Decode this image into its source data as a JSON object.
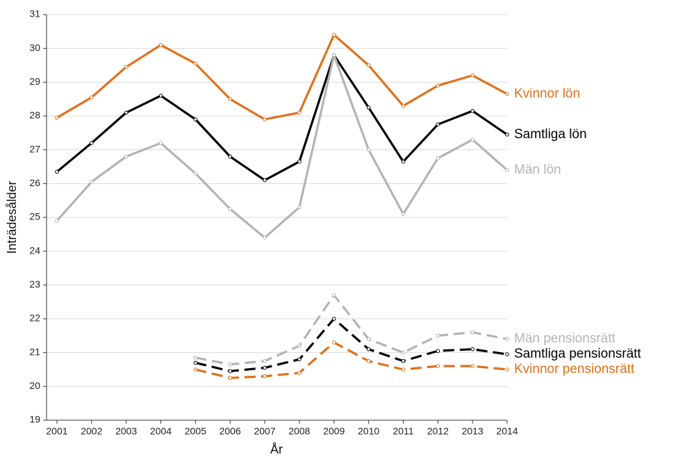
{
  "chart_data": {
    "type": "line",
    "y_label": "Inträdesålder",
    "x_label": "År",
    "x": [
      2001,
      2002,
      2003,
      2004,
      2005,
      2006,
      2007,
      2008,
      2009,
      2010,
      2011,
      2012,
      2013,
      2014
    ],
    "xlim": [
      2000.7,
      2014
    ],
    "xticks": [
      2001,
      2002,
      2003,
      2004,
      2005,
      2006,
      2007,
      2008,
      2009,
      2010,
      2011,
      2012,
      2013,
      2014
    ],
    "ylim": [
      19,
      31
    ],
    "yticks": [
      19,
      20,
      21,
      22,
      23,
      24,
      25,
      26,
      27,
      28,
      29,
      30,
      31
    ],
    "grid": true,
    "series": [
      {
        "name": "Kvinnor lön",
        "color": "#e0701a",
        "line_style": "solid",
        "values": [
          27.95,
          28.55,
          29.45,
          30.1,
          29.55,
          28.5,
          27.9,
          28.1,
          30.4,
          29.5,
          28.3,
          28.9,
          29.2,
          28.65
        ]
      },
      {
        "name": "Samtliga lön",
        "color": "#000000",
        "line_style": "solid",
        "values": [
          26.35,
          27.2,
          28.1,
          28.6,
          27.9,
          26.8,
          26.1,
          26.65,
          29.8,
          28.25,
          26.65,
          27.75,
          28.15,
          27.45
        ]
      },
      {
        "name": "Män lön",
        "color": "#b3b3b3",
        "line_style": "solid",
        "values": [
          24.9,
          26.05,
          26.8,
          27.2,
          26.3,
          25.25,
          24.4,
          25.3,
          29.8,
          27.0,
          25.1,
          26.75,
          27.3,
          26.4
        ]
      },
      {
        "name": "Män pensionsrätt",
        "color": "#b3b3b3",
        "line_style": "dashed",
        "values": [
          null,
          null,
          null,
          null,
          20.85,
          20.65,
          20.75,
          21.2,
          22.7,
          21.4,
          21.0,
          21.5,
          21.6,
          21.4
        ]
      },
      {
        "name": "Samtliga pensionsrätt",
        "color": "#000000",
        "line_style": "dashed",
        "values": [
          null,
          null,
          null,
          null,
          20.7,
          20.45,
          20.55,
          20.8,
          22.0,
          21.1,
          20.75,
          21.05,
          21.1,
          20.95
        ]
      },
      {
        "name": "Kvinnor pensionsrätt",
        "color": "#e0701a",
        "line_style": "dashed",
        "values": [
          null,
          null,
          null,
          null,
          20.5,
          20.25,
          20.3,
          20.4,
          21.3,
          20.75,
          20.5,
          20.6,
          20.6,
          20.5
        ]
      }
    ]
  }
}
